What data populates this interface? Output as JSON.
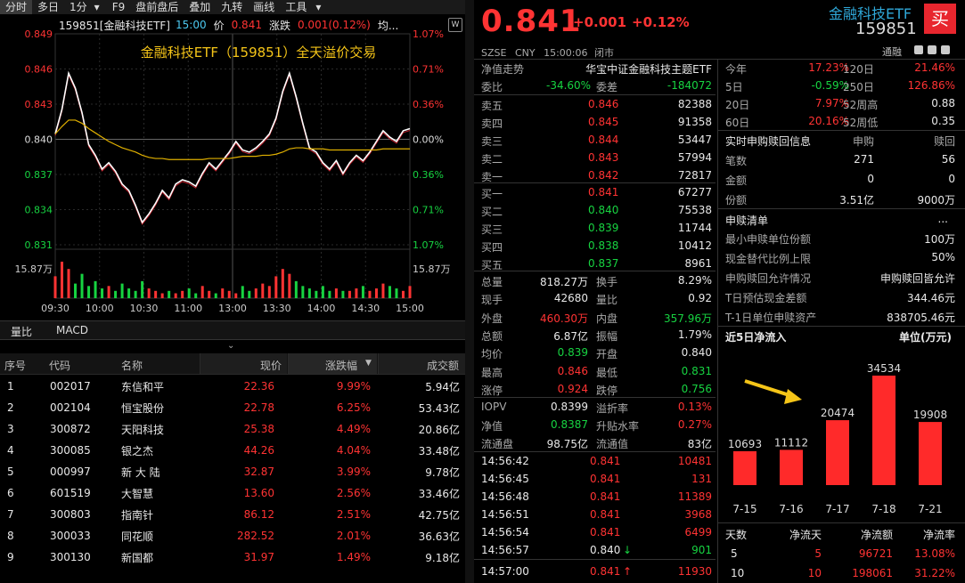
{
  "toolbar": {
    "items": [
      "分时",
      "多日",
      "1分",
      "▾",
      "F9",
      "盘前盘后",
      "叠加",
      "九转",
      "画线",
      "工具",
      "▾"
    ]
  },
  "chart_header": {
    "code_name": "159851[金融科技ETF]",
    "time": "15:00",
    "price_label": "价",
    "price": "0.841",
    "change_label": "涨跌",
    "change": "0.001(0.12%)",
    "avg_label": "均..."
  },
  "chart_title": "金融科技ETF（159851）全天溢价交易",
  "chart_data": {
    "type": "line",
    "title": "金融科技ETF（159851）全天溢价交易",
    "y_ticks_left": [
      "0.849",
      "0.846",
      "0.843",
      "0.840",
      "0.837",
      "0.834",
      "0.831"
    ],
    "y_ticks_right": [
      "1.07%",
      "0.71%",
      "0.36%",
      "0.00%",
      "0.36%",
      "0.71%",
      "1.07%"
    ],
    "x_ticks": [
      "09:30",
      "10:00",
      "10:30",
      "11:00",
      "13:00",
      "13:30",
      "14:00",
      "14:30",
      "15:00"
    ],
    "volume_label": "15.87万",
    "ylim": [
      0.8301,
      0.8499
    ],
    "series": [
      {
        "values": [
          0.8405,
          0.8428,
          0.8462,
          0.8448,
          0.8425,
          0.8395,
          0.8385,
          0.8372,
          0.8378,
          0.837,
          0.8358,
          0.8352,
          0.8338,
          0.8322,
          0.833,
          0.834,
          0.8352,
          0.8345,
          0.8358,
          0.8362,
          0.836,
          0.8356,
          0.8368,
          0.8378,
          0.8372,
          0.838,
          0.8388,
          0.8398,
          0.839,
          0.8388,
          0.8392,
          0.8398,
          0.8405,
          0.842,
          0.8445,
          0.8462,
          0.844,
          0.8415,
          0.8392,
          0.8388,
          0.8378,
          0.8372,
          0.838,
          0.8368,
          0.8378,
          0.8385,
          0.838,
          0.8388,
          0.8398,
          0.8408,
          0.8402,
          0.8398,
          0.8408,
          0.841
        ]
      },
      {
        "values": [
          0.8405,
          0.8412,
          0.8418,
          0.8418,
          0.8415,
          0.841,
          0.8406,
          0.8402,
          0.8398,
          0.8395,
          0.8392,
          0.839,
          0.8388,
          0.8385,
          0.8383,
          0.8382,
          0.8382,
          0.8381,
          0.8381,
          0.8381,
          0.8381,
          0.8381,
          0.8381,
          0.8382,
          0.8382,
          0.8382,
          0.8382,
          0.8383,
          0.8384,
          0.8384,
          0.8384,
          0.8385,
          0.8385,
          0.8386,
          0.8388,
          0.8391,
          0.8392,
          0.8392,
          0.8391,
          0.8391,
          0.8391,
          0.839,
          0.839,
          0.839,
          0.839,
          0.839,
          0.839,
          0.839,
          0.839,
          0.8391,
          0.8391,
          0.8391,
          0.8391,
          0.8391
        ]
      }
    ],
    "volume": [
      9,
      15,
      12,
      6,
      10,
      5,
      7,
      4,
      5,
      3,
      6,
      4,
      3,
      7,
      4,
      3,
      2,
      3,
      2,
      3,
      4,
      2,
      5,
      3,
      2,
      4,
      3,
      2,
      5,
      3,
      4,
      6,
      5,
      9,
      12,
      10,
      7,
      5,
      4,
      3,
      5,
      3,
      4,
      3,
      3,
      4,
      5,
      3,
      4,
      6,
      5,
      4,
      3,
      5
    ]
  },
  "sub_tabs": [
    "量比",
    "MACD"
  ],
  "list_header": {
    "seq": "序号",
    "code": "代码",
    "name": "名称",
    "price": "现价",
    "change": "涨跌幅",
    "amount": "成交额"
  },
  "stocks": [
    {
      "seq": "1",
      "code": "002017",
      "name": "东信和平",
      "price": "22.36",
      "change": "9.99%",
      "amount": "5.94亿"
    },
    {
      "seq": "2",
      "code": "002104",
      "name": "恒宝股份",
      "price": "22.78",
      "change": "6.25%",
      "amount": "53.43亿"
    },
    {
      "seq": "3",
      "code": "300872",
      "name": "天阳科技",
      "price": "25.38",
      "change": "4.49%",
      "amount": "20.86亿"
    },
    {
      "seq": "4",
      "code": "300085",
      "name": "银之杰",
      "price": "44.26",
      "change": "4.04%",
      "amount": "33.48亿"
    },
    {
      "seq": "5",
      "code": "000997",
      "name": "新 大 陆",
      "price": "32.87",
      "change": "3.99%",
      "amount": "9.78亿"
    },
    {
      "seq": "6",
      "code": "601519",
      "name": "大智慧",
      "price": "13.60",
      "change": "2.56%",
      "amount": "33.46亿"
    },
    {
      "seq": "7",
      "code": "300803",
      "name": "指南针",
      "price": "86.12",
      "change": "2.51%",
      "amount": "42.75亿"
    },
    {
      "seq": "8",
      "code": "300033",
      "name": "同花顺",
      "price": "282.52",
      "change": "2.01%",
      "amount": "36.63亿"
    },
    {
      "seq": "9",
      "code": "300130",
      "name": "新国都",
      "price": "31.97",
      "change": "1.49%",
      "amount": "9.18亿"
    }
  ],
  "quote": {
    "price": "0.841",
    "change": "+0.001",
    "change_pct": "+0.12%",
    "market": "SZSE",
    "currency": "CNY",
    "time": "15:00:06",
    "status": "闭市",
    "name": "金融科技ETF",
    "code": "159851",
    "buy_button": "买",
    "tag": "通融"
  },
  "orderbook": {
    "nav_trend": "净值走势",
    "fund_name": "华宝中证金融科技主题ETF",
    "weibi_label": "委比",
    "weibi": "-34.60%",
    "weicha_label": "委差",
    "weicha": "-184072",
    "asks": [
      {
        "label": "卖五",
        "price": "0.846",
        "vol": "82388"
      },
      {
        "label": "卖四",
        "price": "0.845",
        "vol": "91358"
      },
      {
        "label": "卖三",
        "price": "0.844",
        "vol": "53447"
      },
      {
        "label": "卖二",
        "price": "0.843",
        "vol": "57994"
      },
      {
        "label": "卖一",
        "price": "0.842",
        "vol": "72817"
      }
    ],
    "bids": [
      {
        "label": "买一",
        "price": "0.841",
        "vol": "67277"
      },
      {
        "label": "买二",
        "price": "0.840",
        "vol": "75538"
      },
      {
        "label": "买三",
        "price": "0.839",
        "vol": "11744"
      },
      {
        "label": "买四",
        "price": "0.838",
        "vol": "10412"
      },
      {
        "label": "买五",
        "price": "0.837",
        "vol": "8961"
      }
    ]
  },
  "stats": [
    {
      "l1": "总量",
      "v1": "818.27万",
      "l2": "换手",
      "v2": "8.29%"
    },
    {
      "l1": "现手",
      "v1": "42680",
      "l2": "量比",
      "v2": "0.92"
    },
    {
      "l1": "外盘",
      "v1": "460.30万",
      "l2": "内盘",
      "v2": "357.96万"
    },
    {
      "l1": "总额",
      "v1": "6.87亿",
      "l2": "振幅",
      "v2": "1.79%"
    },
    {
      "l1": "均价",
      "v1": "0.839",
      "l2": "开盘",
      "v2": "0.840"
    },
    {
      "l1": "最高",
      "v1": "0.846",
      "l2": "最低",
      "v2": "0.831"
    },
    {
      "l1": "涨停",
      "v1": "0.924",
      "l2": "跌停",
      "v2": "0.756"
    }
  ],
  "iopv": [
    {
      "l1": "IOPV",
      "v1": "0.8399",
      "l2": "溢折率",
      "v2": "0.13%"
    },
    {
      "l1": "净值",
      "v1": "0.8387",
      "l2": "升贴水率",
      "v2": "0.27%"
    },
    {
      "l1": "流通盘",
      "v1": "98.75亿",
      "l2": "流通值",
      "v2": "83亿"
    }
  ],
  "ticks": [
    {
      "time": "14:56:42",
      "price": "0.841",
      "vol": "10481",
      "arrow": ""
    },
    {
      "time": "14:56:45",
      "price": "0.841",
      "vol": "131",
      "arrow": ""
    },
    {
      "time": "14:56:48",
      "price": "0.841",
      "vol": "11389",
      "arrow": ""
    },
    {
      "time": "14:56:51",
      "price": "0.841",
      "vol": "3968",
      "arrow": ""
    },
    {
      "time": "14:56:54",
      "price": "0.841",
      "vol": "6499",
      "arrow": ""
    },
    {
      "time": "14:56:57",
      "price": "0.840",
      "vol": "901",
      "arrow": "↓"
    },
    {
      "time": "14:57:00",
      "price": "0.841",
      "vol": "11930",
      "arrow": "↑"
    }
  ],
  "perf": [
    {
      "l1": "今年",
      "v1": "17.23%",
      "l2": "120日",
      "v2": "21.46%"
    },
    {
      "l1": "5日",
      "v1": "-0.59%",
      "l2": "250日",
      "v2": "126.86%"
    },
    {
      "l1": "20日",
      "v1": "7.97%",
      "l2": "52周高",
      "v2": "0.88"
    },
    {
      "l1": "60日",
      "v1": "20.16%",
      "l2": "52周低",
      "v2": "0.35"
    }
  ],
  "subscription": {
    "title": "实时申购赎回信息",
    "col1": "申购",
    "col2": "赎回",
    "rows": [
      {
        "label": "笔数",
        "v1": "271",
        "v2": "56"
      },
      {
        "label": "金额",
        "v1": "0",
        "v2": "0"
      },
      {
        "label": "份额",
        "v1": "3.51亿",
        "v2": "9000万"
      }
    ]
  },
  "redemption_list": {
    "title": "申赎清单",
    "more": "...",
    "rows": [
      {
        "label": "最小申赎单位份额",
        "value": "100万"
      },
      {
        "label": "现金替代比例上限",
        "value": "50%"
      },
      {
        "label": "申购赎回允许情况",
        "value": "申购赎回皆允许"
      },
      {
        "label": "T日预估现金差额",
        "value": "344.46元"
      },
      {
        "label": "T-1日单位申赎资产",
        "value": "838705.46元"
      }
    ]
  },
  "inflow": {
    "title": "近5日净流入",
    "unit": "单位(万元)",
    "chart_data": {
      "type": "bar",
      "categories": [
        "7-15",
        "7-16",
        "7-17",
        "7-18",
        "7-21"
      ],
      "values": [
        10693,
        11112,
        20474,
        34534,
        19908
      ],
      "ylim": [
        0,
        34534
      ]
    }
  },
  "net_table": {
    "headers": [
      "天数",
      "净流天",
      "净流额",
      "净流率"
    ],
    "rows": [
      {
        "days": "5",
        "flow_days": "5",
        "amount": "96721",
        "rate": "13.08%"
      },
      {
        "days": "10",
        "flow_days": "10",
        "amount": "198061",
        "rate": "31.22%"
      }
    ]
  },
  "colors": {
    "up": "#ff3333",
    "down": "#17d341",
    "accent": "#f5c518",
    "brand_button": "#e8262e"
  }
}
